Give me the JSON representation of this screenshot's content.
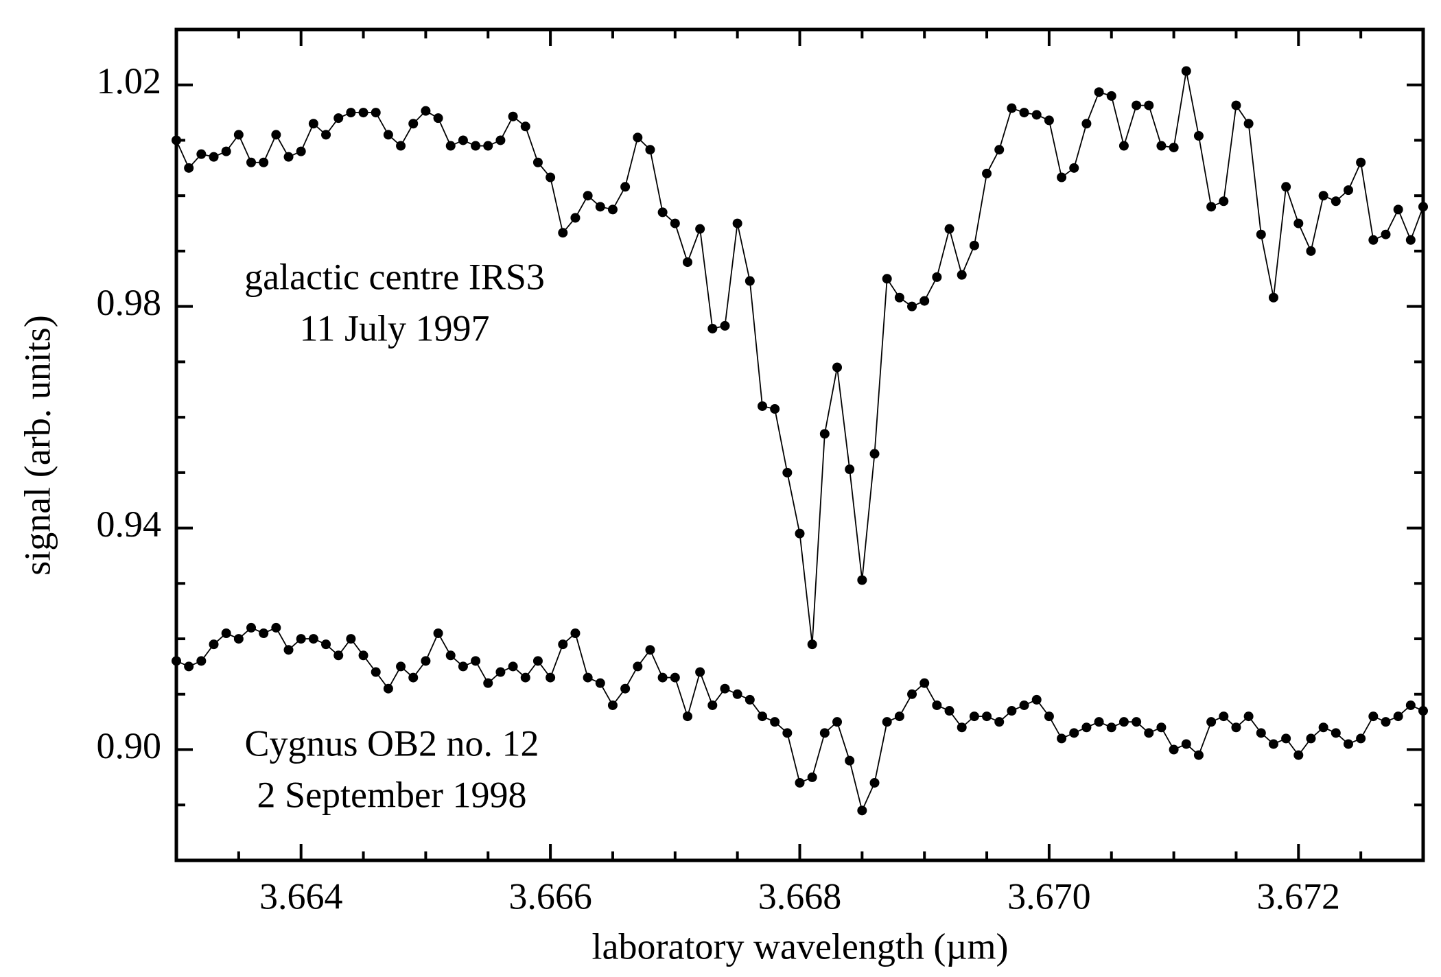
{
  "chart_data": {
    "type": "line",
    "xlabel": "laboratory wavelength (µm)",
    "ylabel": "signal (arb. units)",
    "annotations": [
      "galactic centre IRS3",
      "11 July 1997",
      "Cygnus OB2 no. 12",
      "2 September 1998"
    ],
    "x": [
      3.663,
      3.6631,
      3.6632,
      3.6633,
      3.6634,
      3.6635,
      3.6636,
      3.6637,
      3.6638,
      3.6639,
      3.664,
      3.6641,
      3.6642,
      3.6643,
      3.6644,
      3.6645,
      3.6646,
      3.6647,
      3.6648,
      3.6649,
      3.665,
      3.6651,
      3.6652,
      3.6653,
      3.6654,
      3.6655,
      3.6656,
      3.6657,
      3.6658,
      3.6659,
      3.666,
      3.6661,
      3.6662,
      3.6663,
      3.6664,
      3.6665,
      3.6666,
      3.6667,
      3.6668,
      3.6669,
      3.667,
      3.6671,
      3.6672,
      3.6673,
      3.6674,
      3.6675,
      3.6676,
      3.6677,
      3.6678,
      3.6679,
      3.668,
      3.6681,
      3.6682,
      3.6683,
      3.6684,
      3.6685,
      3.6686,
      3.6687,
      3.6688,
      3.6689,
      3.669,
      3.6691,
      3.6692,
      3.6693,
      3.6694,
      3.6695,
      3.6696,
      3.6697,
      3.6698,
      3.6699,
      3.67,
      3.6701,
      3.6702,
      3.6703,
      3.6704,
      3.6705,
      3.6706,
      3.6707,
      3.6708,
      3.6709,
      3.671,
      3.6711,
      3.6712,
      3.6713,
      3.6714,
      3.6715,
      3.6716,
      3.6717,
      3.6718,
      3.6719,
      3.672,
      3.6721,
      3.6722,
      3.6723,
      3.6724,
      3.6725,
      3.6726,
      3.6727,
      3.6728,
      3.6729,
      3.673
    ],
    "series": [
      {
        "color": "#000000",
        "values": [
          1.01,
          1.005,
          1.0075,
          1.007,
          1.008,
          1.011,
          1.006,
          1.006,
          1.011,
          1.007,
          1.008,
          1.013,
          1.011,
          1.014,
          1.015,
          1.015,
          1.015,
          1.011,
          1.009,
          1.013,
          1.0153,
          1.014,
          1.009,
          1.01,
          1.009,
          1.009,
          1.01,
          1.0143,
          1.0125,
          1.006,
          1.0033,
          0.9933,
          0.996,
          1.0,
          0.998,
          0.9975,
          1.0016,
          1.0105,
          1.0083,
          0.997,
          0.995,
          0.988,
          0.994,
          0.976,
          0.9765,
          0.995,
          0.9846,
          0.962,
          0.9615,
          0.95,
          0.939,
          0.919,
          0.957,
          0.969,
          0.9506,
          0.9306,
          0.9534,
          0.985,
          0.9816,
          0.98,
          0.981,
          0.9853,
          0.994,
          0.9857,
          0.991,
          1.004,
          1.0083,
          1.0158,
          1.015,
          1.0146,
          1.0136,
          1.0033,
          1.005,
          1.013,
          1.0187,
          1.018,
          1.009,
          1.0163,
          1.0163,
          1.009,
          1.0087,
          1.0225,
          1.0108,
          0.998,
          0.999,
          1.0163,
          1.013,
          0.993,
          0.9816,
          1.0016,
          0.995,
          0.99,
          1.0,
          0.999,
          1.001,
          1.006,
          0.992,
          0.993,
          0.9975,
          0.992,
          0.998
        ]
      },
      {
        "color": "#000000",
        "values": [
          0.916,
          0.915,
          0.916,
          0.919,
          0.921,
          0.92,
          0.922,
          0.921,
          0.922,
          0.918,
          0.92,
          0.92,
          0.919,
          0.917,
          0.92,
          0.917,
          0.914,
          0.911,
          0.915,
          0.913,
          0.916,
          0.921,
          0.917,
          0.915,
          0.916,
          0.912,
          0.914,
          0.915,
          0.913,
          0.916,
          0.913,
          0.919,
          0.921,
          0.913,
          0.912,
          0.908,
          0.911,
          0.915,
          0.918,
          0.913,
          0.913,
          0.906,
          0.914,
          0.908,
          0.911,
          0.91,
          0.909,
          0.906,
          0.905,
          0.903,
          0.894,
          0.895,
          0.903,
          0.905,
          0.898,
          0.889,
          0.894,
          0.905,
          0.906,
          0.91,
          0.912,
          0.908,
          0.907,
          0.904,
          0.906,
          0.906,
          0.905,
          0.907,
          0.908,
          0.909,
          0.906,
          0.902,
          0.903,
          0.904,
          0.905,
          0.904,
          0.905,
          0.905,
          0.903,
          0.904,
          0.9,
          0.901,
          0.899,
          0.905,
          0.906,
          0.904,
          0.906,
          0.903,
          0.901,
          0.902,
          0.899,
          0.902,
          0.904,
          0.903,
          0.901,
          0.902,
          0.906,
          0.905,
          0.906,
          0.908,
          0.907
        ]
      }
    ],
    "xlim": [
      3.663,
      3.673
    ],
    "ylim": [
      0.88,
      1.03
    ],
    "xticks": [
      3.664,
      3.666,
      3.668,
      {
        "value": 3.67,
        "label": "3.670"
      },
      3.672
    ],
    "yticks": [
      {
        "value": 0.9,
        "label": "0.90"
      },
      0.94,
      0.98,
      1.02
    ],
    "xminorticks": [
      3.6635,
      3.6645,
      3.665,
      3.6655,
      3.6665,
      3.667,
      3.6675,
      3.6685,
      3.669,
      3.6695,
      3.6705,
      3.671,
      3.6715,
      3.6725
    ],
    "yminorticks": [
      0.89,
      0.91,
      0.92,
      0.93,
      0.95,
      0.96,
      0.97,
      0.99,
      1.0,
      1.01
    ]
  }
}
